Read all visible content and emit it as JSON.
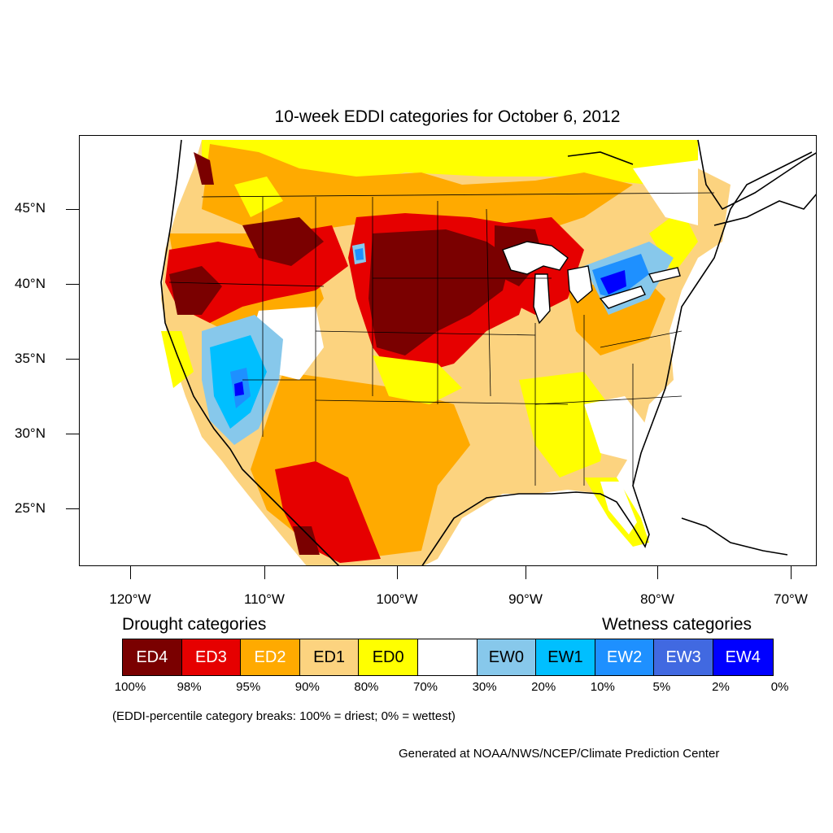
{
  "title": "10-week EDDI categories for October 6, 2012",
  "lat_labels": [
    "45°N",
    "40°N",
    "35°N",
    "30°N",
    "25°N"
  ],
  "lon_labels": [
    "120°W",
    "110°W",
    "100°W",
    "90°W",
    "80°W",
    "70°W"
  ],
  "legend": {
    "drought_title": "Drought categories",
    "wetness_title": "Wetness categories",
    "categories": [
      {
        "label": "ED4",
        "color": "#7a0000",
        "text_color": "#ffffff"
      },
      {
        "label": "ED3",
        "color": "#e60000",
        "text_color": "#ffffff"
      },
      {
        "label": "ED2",
        "color": "#ffaa00",
        "text_color": "#ffffff"
      },
      {
        "label": "ED1",
        "color": "#fcd37f",
        "text_color": "#000000"
      },
      {
        "label": "ED0",
        "color": "#ffff00",
        "text_color": "#000000"
      },
      {
        "label": "",
        "color": "#ffffff",
        "text_color": "#000000"
      },
      {
        "label": "EW0",
        "color": "#87c8eb",
        "text_color": "#000000"
      },
      {
        "label": "EW1",
        "color": "#00bfff",
        "text_color": "#000000"
      },
      {
        "label": "EW2",
        "color": "#1e90ff",
        "text_color": "#ffffff"
      },
      {
        "label": "EW3",
        "color": "#4169e1",
        "text_color": "#ffffff"
      },
      {
        "label": "EW4",
        "color": "#0000ff",
        "text_color": "#ffffff"
      }
    ],
    "percentiles": [
      "100%",
      "98%",
      "95%",
      "90%",
      "80%",
      "70%",
      "30%",
      "20%",
      "10%",
      "5%",
      "2%",
      "0%"
    ]
  },
  "note": "(EDDI-percentile category breaks: 100% = driest; 0% = wettest)",
  "credit": "Generated at NOAA/NWS/NCEP/Climate Prediction Center"
}
